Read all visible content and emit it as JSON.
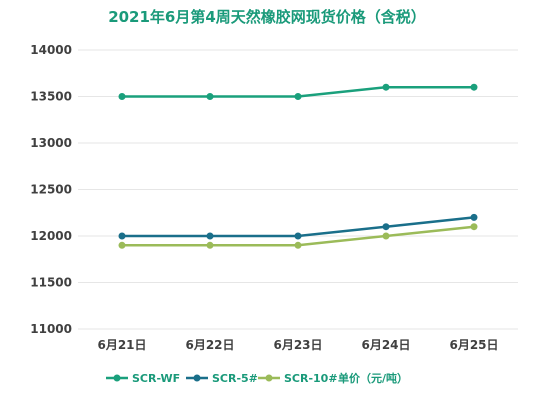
{
  "chart_data": {
    "type": "line",
    "title": "2021年6月第4周天然橡胶网现货价格（含税）",
    "unit_label": "单价（元/吨）",
    "categories": [
      "6月21日",
      "6月22日",
      "6月23日",
      "6月24日",
      "6月25日"
    ],
    "series": [
      {
        "name": "SCR-WF",
        "values": [
          13500,
          13500,
          13500,
          13600,
          13600
        ],
        "color": "#1aa07c"
      },
      {
        "name": "SCR-5#",
        "values": [
          12000,
          12000,
          12000,
          12100,
          12200
        ],
        "color": "#1a6f8a"
      },
      {
        "name": "SCR-10#",
        "values": [
          11900,
          11900,
          11900,
          12000,
          12100
        ],
        "color": "#9bbb59"
      }
    ],
    "ylim": [
      11000,
      14000
    ],
    "yticks": [
      11000,
      11500,
      12000,
      12500,
      13000,
      13500,
      14000
    ],
    "grid": true,
    "legend_position": "bottom"
  }
}
